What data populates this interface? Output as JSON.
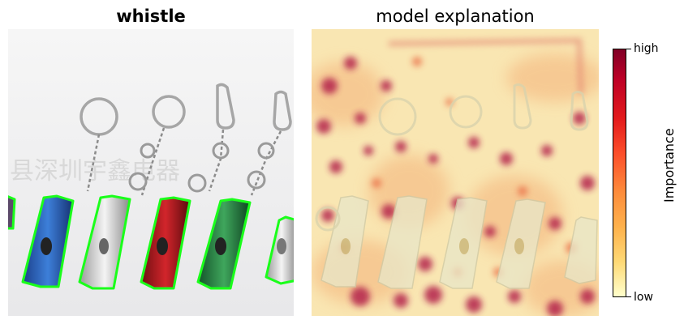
{
  "left_panel": {
    "title": "whistle",
    "watermark": "县深圳宇鑫电器"
  },
  "right_panel": {
    "title": "model explanation"
  },
  "colorbar": {
    "high_label": "high",
    "low_label": "low",
    "axis_label": "Importance",
    "colors": [
      "#800026",
      "#bd0026",
      "#e31a1c",
      "#fc4e2a",
      "#fd8d3c",
      "#feb24c",
      "#fed976",
      "#ffffcc"
    ]
  }
}
